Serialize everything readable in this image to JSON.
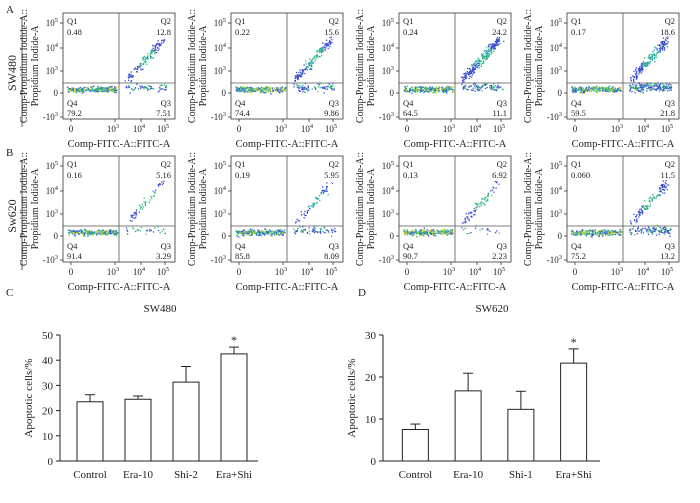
{
  "flow": {
    "x_axis_label": "Comp-FITC-A::FITC-A",
    "y_axis_label_line1": "Comp-Propidium Iodide-A::",
    "y_axis_label_line2": "Propidium Iodide-A",
    "x_ticks": [
      "0",
      "10",
      "10",
      "10"
    ],
    "x_tick_exps": [
      "",
      "3",
      "4",
      "5"
    ],
    "y_ticks": [
      "-10",
      "0",
      "10",
      "10",
      "10"
    ],
    "y_tick_exps": [
      "3",
      "",
      "3",
      "4",
      "5"
    ],
    "rows": [
      {
        "panel_letter": "A",
        "cell_line": "SW480",
        "panels": [
          {
            "Q1": "0.48",
            "Q2": "12.8",
            "Q3": "7.51",
            "Q4": "79.2"
          },
          {
            "Q1": "0.22",
            "Q2": "15.6",
            "Q3": "9.86",
            "Q4": "74.4"
          },
          {
            "Q1": "0.24",
            "Q2": "24.2",
            "Q3": "11.1",
            "Q4": "64.5"
          },
          {
            "Q1": "0.17",
            "Q2": "18.6",
            "Q3": "21.8",
            "Q4": "59.5"
          }
        ]
      },
      {
        "panel_letter": "B",
        "cell_line": "Sw620",
        "panels": [
          {
            "Q1": "0.16",
            "Q2": "5.16",
            "Q3": "3.29",
            "Q4": "91.4"
          },
          {
            "Q1": "0.19",
            "Q2": "5.95",
            "Q3": "8.09",
            "Q4": "85.8"
          },
          {
            "Q1": "0.13",
            "Q2": "6.92",
            "Q3": "2.23",
            "Q4": "90.7"
          },
          {
            "Q1": "0.060",
            "Q2": "11.5",
            "Q3": "13.2",
            "Q4": "75.2"
          }
        ]
      }
    ]
  },
  "chart_data": [
    {
      "type": "bar",
      "panel_letter": "C",
      "title": "SW480",
      "ylabel": "Apoptotic cells/%",
      "categories": [
        "Control",
        "Era-10",
        "Shi-2",
        "Era+Shi"
      ],
      "values": [
        23.5,
        24.5,
        31.3,
        42.5
      ],
      "errors": [
        2.8,
        1.3,
        6.2,
        2.7
      ],
      "significance": [
        "",
        "",
        "",
        "*"
      ],
      "ylim": [
        0,
        50
      ],
      "yticks": [
        0,
        10,
        20,
        30,
        40,
        50
      ]
    },
    {
      "type": "bar",
      "panel_letter": "D",
      "title": "SW620",
      "ylabel": "Apoptotic cells/%",
      "categories": [
        "Control",
        "Era-10",
        "Shi-1",
        "Era+Shi"
      ],
      "values": [
        7.5,
        16.7,
        12.3,
        23.3
      ],
      "errors": [
        1.3,
        4.2,
        4.3,
        3.4
      ],
      "significance": [
        "",
        "",
        "",
        "*"
      ],
      "ylim": [
        0,
        30
      ],
      "yticks": [
        0,
        10,
        20,
        30
      ]
    }
  ]
}
